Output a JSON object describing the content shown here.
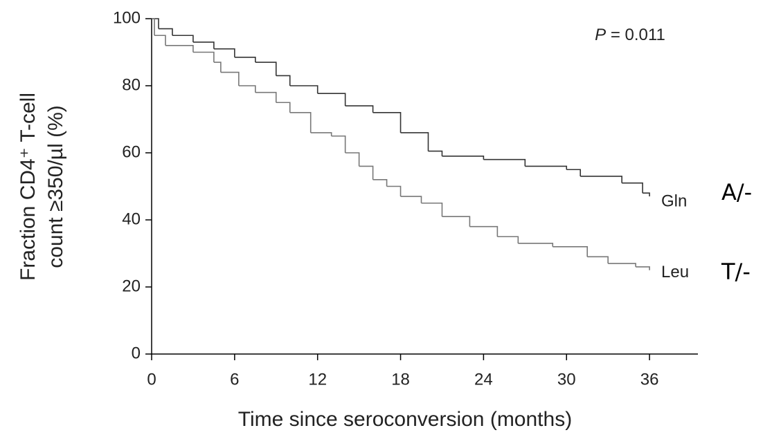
{
  "chart_data": {
    "type": "step",
    "x_label": "Time since seroconversion (months)",
    "y_label": [
      "Fraction CD4⁺ T-cell",
      "count ≥350/µl (%)"
    ],
    "annotation": [
      "P",
      " = 0.011"
    ],
    "xlim": [
      0,
      39.5
    ],
    "ylim": [
      0,
      100
    ],
    "xticks": [
      0,
      6,
      12,
      18,
      24,
      30,
      36
    ],
    "yticks": [
      0,
      20,
      40,
      60,
      80,
      100
    ],
    "series": [
      {
        "name": "Gln",
        "allele": "A/-",
        "color": "#333333",
        "x": [
          0,
          0.5,
          1.5,
          3,
          4.5,
          6,
          7.5,
          9,
          10,
          12,
          14,
          16,
          18,
          20,
          21,
          24,
          27,
          30,
          31,
          34,
          35.5,
          36
        ],
        "values": [
          100,
          97,
          95,
          93,
          91,
          88.5,
          87,
          83,
          80,
          77.7,
          74,
          72,
          66,
          60.5,
          59,
          58,
          56,
          55,
          53,
          51,
          48,
          47
        ]
      },
      {
        "name": "Leu",
        "allele": "T/-",
        "color": "#777777",
        "x": [
          0,
          0.2,
          1,
          3,
          4.5,
          5,
          6.3,
          7.5,
          9,
          10,
          11.5,
          13,
          14,
          15,
          16,
          17,
          18,
          19.5,
          21,
          23,
          25,
          26.5,
          29,
          31.5,
          33,
          35,
          36
        ],
        "values": [
          100,
          95,
          92,
          90,
          87,
          84,
          80,
          78,
          75,
          72,
          66,
          65,
          60,
          56,
          52,
          50,
          47,
          45,
          41,
          38,
          35,
          33,
          32,
          29,
          27,
          26,
          25
        ]
      }
    ]
  }
}
